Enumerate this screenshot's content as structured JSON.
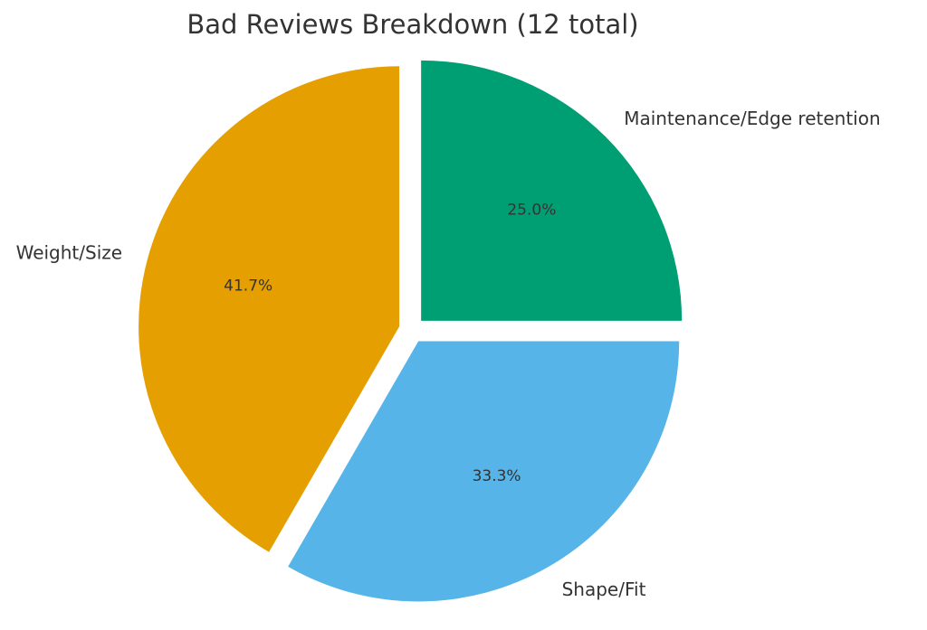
{
  "chart_data": {
    "type": "pie",
    "title": "Bad Reviews Breakdown (12 total)",
    "slices": [
      {
        "label": "Maintenance/Edge retention",
        "value": 3,
        "percent": "25.0%",
        "color": "#009E73"
      },
      {
        "label": "Shape/Fit",
        "value": 4,
        "percent": "33.3%",
        "color": "#56B4E9"
      },
      {
        "label": "Weight/Size",
        "value": 5,
        "percent": "41.7%",
        "color": "#E69F00"
      }
    ],
    "start": "12 o'clock",
    "direction": "clockwise",
    "exploded": true,
    "legend": "none"
  }
}
